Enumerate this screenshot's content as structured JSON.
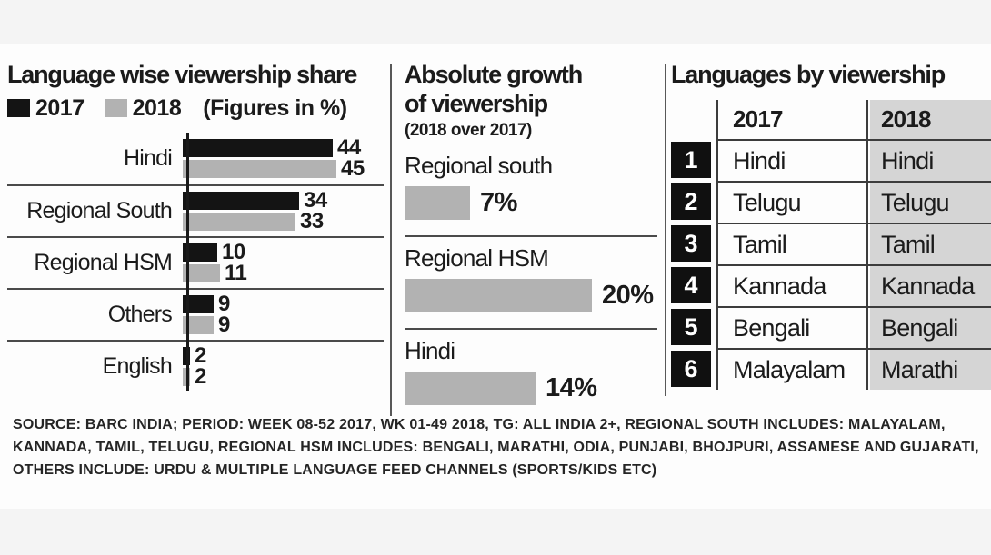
{
  "colors": {
    "text": "#1b1b1b",
    "bar_2017": "#141414",
    "bar_2018": "#b2b2b2",
    "table_2018_bg": "#d5d5d5",
    "rank_box_bg": "#101010",
    "rank_box_text": "#ffffff",
    "divider": "#4a4a4a",
    "page_bg": "#f4f4f4",
    "board_bg": "#fdfdfd"
  },
  "middle_panel": {
    "title_line1": "Absolute growth",
    "title_line2": "of viewership",
    "subtitle": "(2018 over 2017)"
  },
  "chart_data": [
    {
      "type": "bar",
      "orientation": "horizontal",
      "title": "Language wise viewership share",
      "note": "(Figures in %)",
      "unit": "%",
      "categories": [
        "Hindi",
        "Regional South",
        "Regional HSM",
        "Others",
        "English"
      ],
      "series": [
        {
          "name": "2017",
          "color": "#141414",
          "values": [
            44,
            34,
            10,
            9,
            2
          ]
        },
        {
          "name": "2018",
          "color": "#b2b2b2",
          "values": [
            45,
            33,
            11,
            9,
            2
          ]
        }
      ],
      "xlim": [
        0,
        45
      ],
      "legend_position": "top",
      "grid": false
    },
    {
      "type": "bar",
      "orientation": "horizontal",
      "title": "Absolute growth of viewership (2018 over 2017)",
      "unit": "%",
      "categories": [
        "Regional south",
        "Regional HSM",
        "Hindi"
      ],
      "values": [
        7,
        20,
        14
      ],
      "value_labels": [
        "7%",
        "20%",
        "14%"
      ],
      "xlim": [
        0,
        20
      ],
      "grid": false
    },
    {
      "type": "table",
      "title": "Languages by viewership",
      "columns": [
        "2017",
        "2018"
      ],
      "rows": [
        {
          "rank": "1",
          "2017": "Hindi",
          "2018": "Hindi"
        },
        {
          "rank": "2",
          "2017": "Telugu",
          "2018": "Telugu"
        },
        {
          "rank": "3",
          "2017": "Tamil",
          "2018": "Tamil"
        },
        {
          "rank": "4",
          "2017": "Kannada",
          "2018": "Kannada"
        },
        {
          "rank": "5",
          "2017": "Bengali",
          "2018": "Bengali"
        },
        {
          "rank": "6",
          "2017": "Malayalam",
          "2018": "Marathi"
        }
      ]
    }
  ],
  "footer": {
    "lines": [
      "SOURCE: BARC INDIA; PERIOD: WEEK 08-52 2017, WK 01-49 2018, TG: ALL INDIA 2+, REGIONAL SOUTH INCLUDES: MALAYALAM,",
      "KANNADA, TAMIL, TELUGU, REGIONAL HSM INCLUDES: BENGALI, MARATHI, ODIA, PUNJABI, BHOJPURI, ASSAMESE AND GUJARATI,",
      "OTHERS INCLUDE: URDU & MULTIPLE LANGUAGE FEED CHANNELS (SPORTS/KIDS ETC)"
    ]
  }
}
